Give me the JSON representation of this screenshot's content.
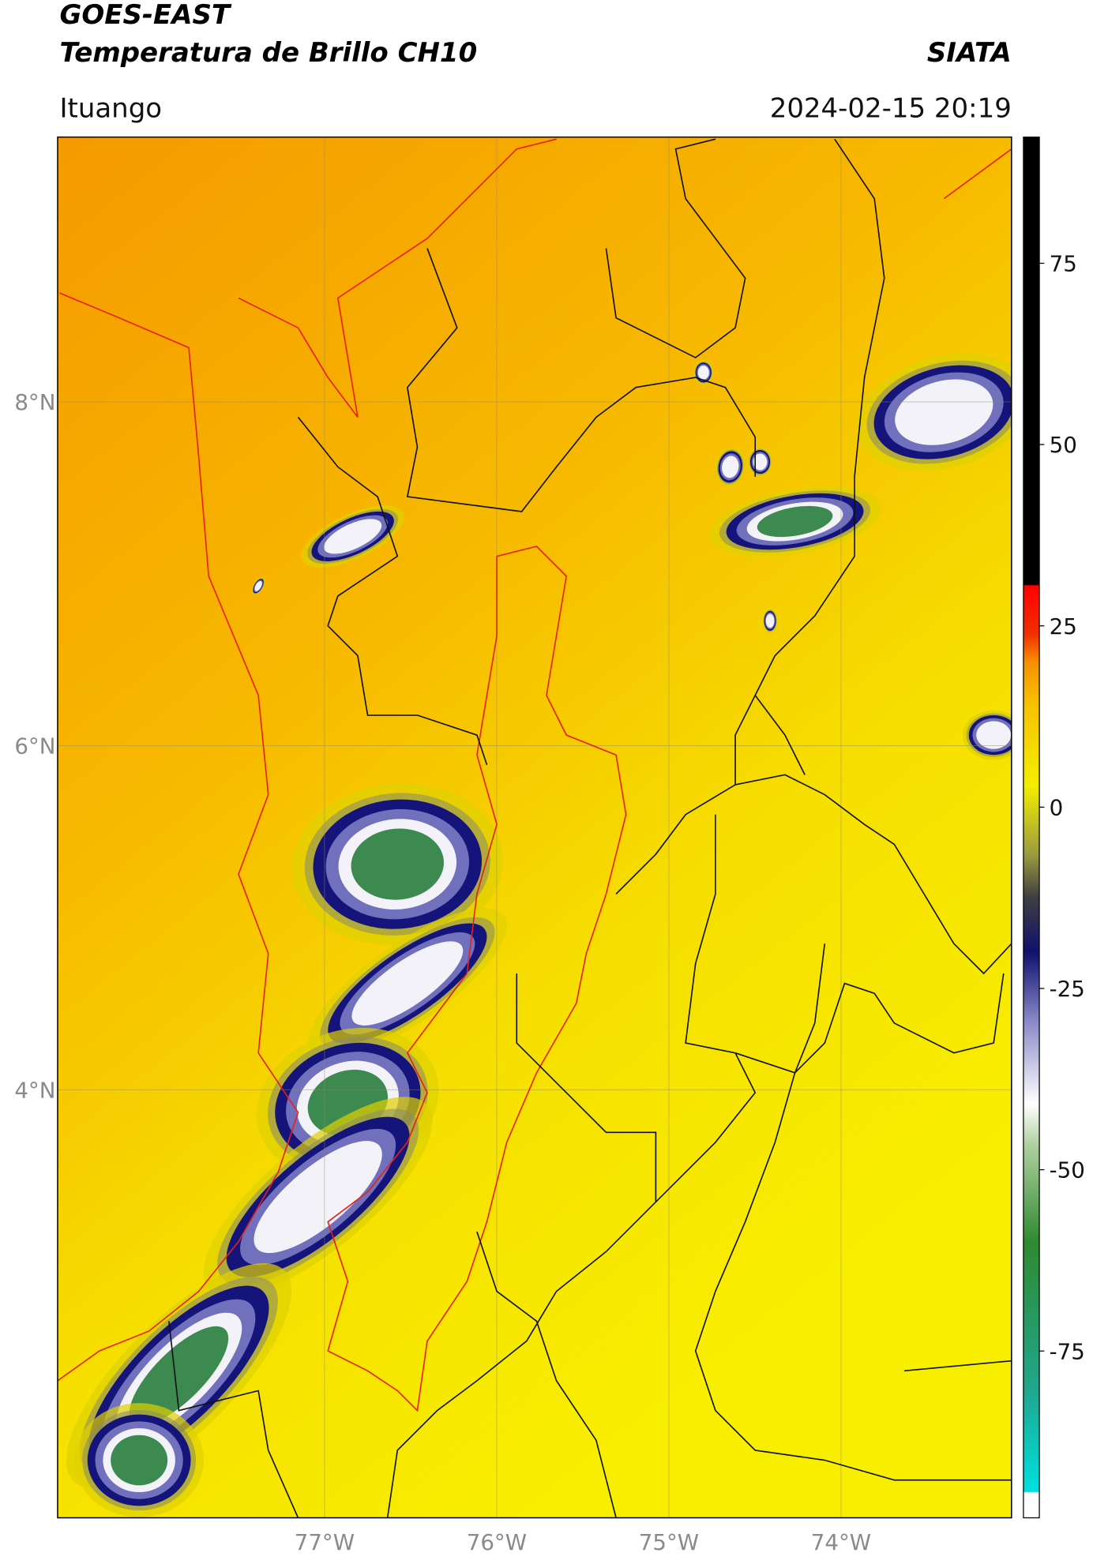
{
  "header": {
    "satellite": "GOES-EAST",
    "product": "Temperatura de Brillo CH10",
    "agency": "SIATA",
    "region": "Ituango",
    "datetime": "2024-02-15 20:19"
  },
  "map": {
    "lat_lim": [
      1.51,
      9.54
    ],
    "lon_lim": [
      -78.55,
      -73.01
    ],
    "lat_ticks": [
      {
        "value": 8,
        "label": "8°N"
      },
      {
        "value": 6,
        "label": "6°N"
      },
      {
        "value": 4,
        "label": "4°N"
      }
    ],
    "lon_ticks": [
      {
        "value": -77,
        "label": "77°W"
      },
      {
        "value": -76,
        "label": "76°W"
      },
      {
        "value": -75,
        "label": "75°W"
      },
      {
        "value": -74,
        "label": "74°W"
      }
    ]
  },
  "colorbar": {
    "lim": [
      -98,
      92.4
    ],
    "ticks": [
      75,
      50,
      25,
      0,
      -25,
      -50,
      -75
    ]
  }
}
